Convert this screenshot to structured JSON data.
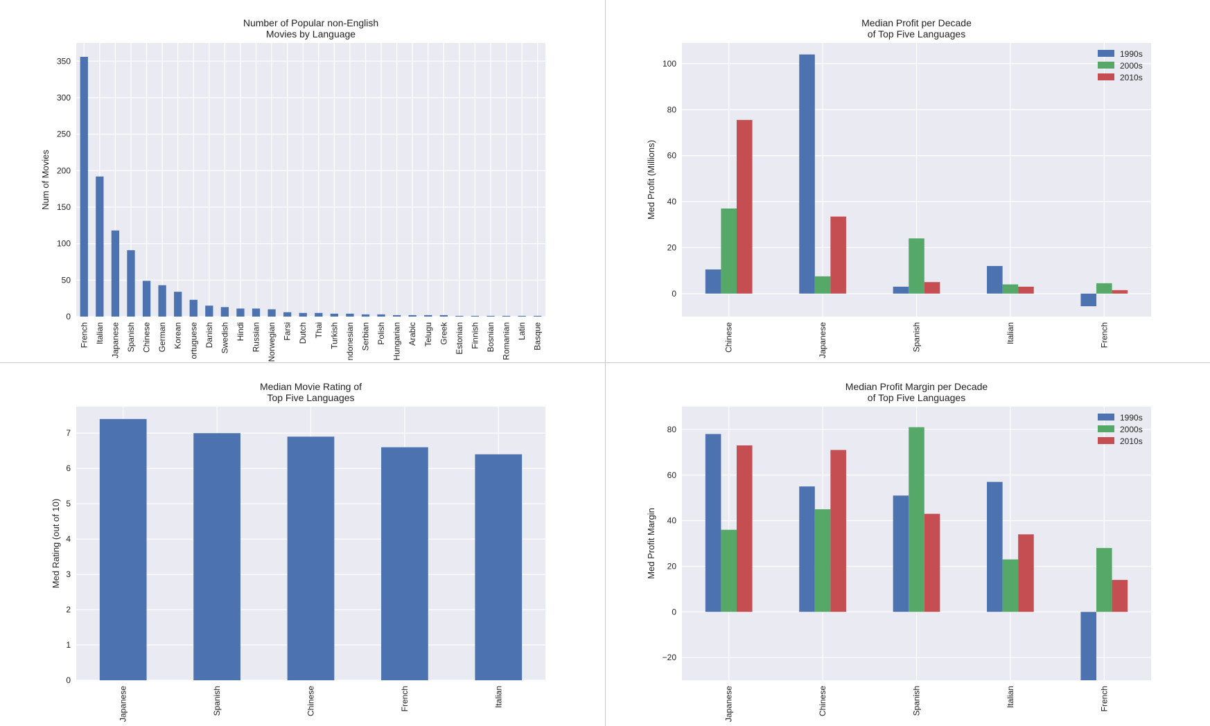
{
  "chart_data": [
    {
      "id": "language_counts",
      "type": "bar",
      "title": "Number of Popular non-English\nMovies by Language",
      "xlabel": "",
      "ylabel": "Num of Movies",
      "ylim": [
        0,
        375
      ],
      "yticks": [
        0,
        50,
        100,
        150,
        200,
        250,
        300,
        350
      ],
      "grid": true,
      "categories": [
        "French",
        "Italian",
        "Japanese",
        "Spanish",
        "Chinese",
        "German",
        "Korean",
        "Portuguese",
        "Danish",
        "Swedish",
        "Hindi",
        "Russian",
        "Norwegian",
        "Farsi",
        "Dutch",
        "Thai",
        "Turkish",
        "Indonesian",
        "Serbian",
        "Polish",
        "Hungarian",
        "Arabic",
        "Telugu",
        "Greek",
        "Estonian",
        "Finnish",
        "Bosnian",
        "Romanian",
        "Latin",
        "Basque"
      ],
      "tick_labels": [
        "French",
        "Italian",
        "Japanese",
        "Spanish",
        "Chinese",
        "German",
        "Korean",
        "ortuguese",
        "Danish",
        "Swedish",
        "Hindi",
        "Russian",
        "Norwegian",
        "Farsi",
        "Dutch",
        "Thai",
        "Turkish",
        "ndonesian",
        "Serbian",
        "Polish",
        "Hungarian",
        "Arabic",
        "Telugu",
        "Greek",
        "Estonian",
        "Finnish",
        "Bosnian",
        "Romanian",
        "Latin",
        "Basque"
      ],
      "values": [
        356,
        192,
        118,
        91,
        49,
        43,
        34,
        23,
        15,
        13,
        11,
        11,
        10,
        6,
        5,
        5,
        4,
        4,
        3,
        3,
        2,
        2,
        2,
        2,
        1,
        1,
        1,
        1,
        1,
        1
      ],
      "colors": [
        "#4c72b0"
      ]
    },
    {
      "id": "profit_per_decade",
      "type": "bar",
      "title": "Median Profit per Decade\nof Top Five Languages",
      "xlabel": "",
      "ylabel": "Med Profit (Millions)",
      "ylim": [
        -10,
        109
      ],
      "yticks": [
        0,
        20,
        40,
        60,
        80,
        100
      ],
      "grid": true,
      "legend_position": "top-right",
      "categories": [
        "Chinese",
        "Japanese",
        "Spanish",
        "Italian",
        "French"
      ],
      "series": [
        {
          "name": "1990s",
          "values": [
            10.5,
            104,
            3,
            12,
            -5.5
          ]
        },
        {
          "name": "2000s",
          "values": [
            37,
            7.5,
            24,
            4,
            4.5
          ]
        },
        {
          "name": "2010s",
          "values": [
            75.5,
            33.5,
            5,
            3,
            1.5
          ]
        }
      ],
      "colors": [
        "#4c72b0",
        "#55a868",
        "#c44e52"
      ]
    },
    {
      "id": "median_rating",
      "type": "bar",
      "title": "Median Movie Rating of\nTop Five Languages",
      "xlabel": "",
      "ylabel": "Med Rating (out of 10)",
      "ylim": [
        0,
        7.75
      ],
      "yticks": [
        0,
        1,
        2,
        3,
        4,
        5,
        6,
        7
      ],
      "grid": true,
      "categories": [
        "Japanese",
        "Spanish",
        "Chinese",
        "French",
        "Italian"
      ],
      "values": [
        7.4,
        7.0,
        6.9,
        6.6,
        6.4
      ],
      "colors": [
        "#4c72b0"
      ]
    },
    {
      "id": "profit_margin_per_decade",
      "type": "bar",
      "title": "Median Profit Margin per Decade\nof Top Five Languages",
      "xlabel": "",
      "ylabel": "Med Profit Margin",
      "ylim": [
        -30,
        90
      ],
      "yticks": [
        -20,
        0,
        20,
        40,
        60,
        80
      ],
      "grid": true,
      "legend_position": "top-right",
      "categories": [
        "Japanese",
        "Chinese",
        "Spanish",
        "Italian",
        "French"
      ],
      "series": [
        {
          "name": "1990s",
          "values": [
            78,
            55,
            51,
            57,
            -30
          ]
        },
        {
          "name": "2000s",
          "values": [
            36,
            45,
            81,
            23,
            28
          ]
        },
        {
          "name": "2010s",
          "values": [
            73,
            71,
            43,
            34,
            14
          ]
        }
      ],
      "colors": [
        "#4c72b0",
        "#55a868",
        "#c44e52"
      ]
    }
  ],
  "style": {
    "plot_background": "#eaeaf2",
    "grid_color": "#ffffff"
  }
}
